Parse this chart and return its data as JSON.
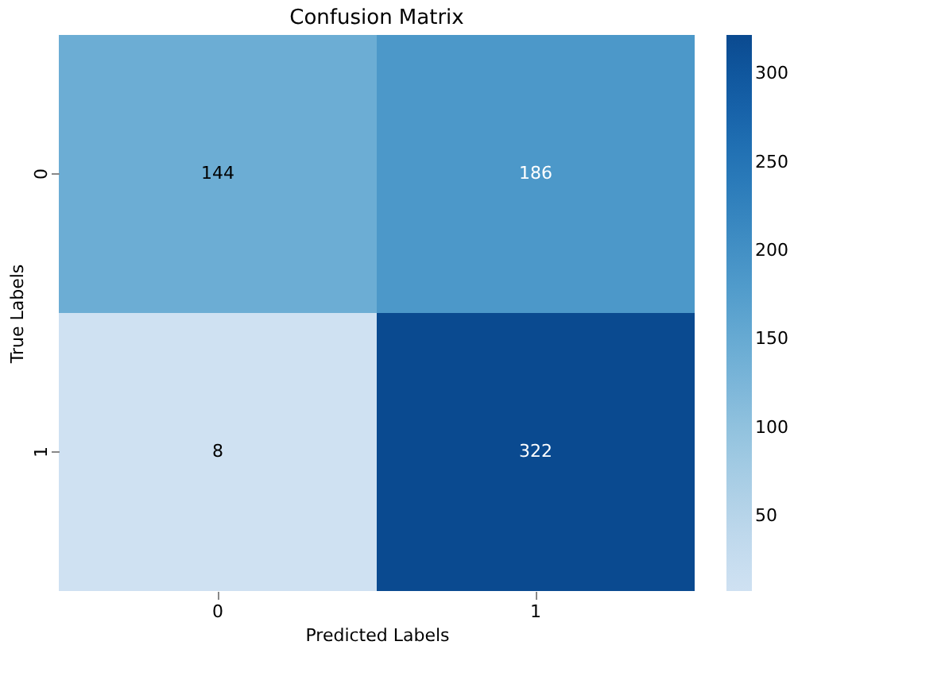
{
  "chart_data": {
    "type": "heatmap",
    "title": "Confusion Matrix",
    "xlabel": "Predicted Labels",
    "ylabel": "True Labels",
    "categories": [
      "0",
      "1"
    ],
    "y_categories": [
      "0",
      "1"
    ],
    "cells": [
      [
        144,
        186
      ],
      [
        8,
        322
      ]
    ],
    "clim": [
      8,
      322
    ],
    "cticks": [
      50,
      100,
      150,
      200,
      250,
      300
    ],
    "data_labels": true
  }
}
